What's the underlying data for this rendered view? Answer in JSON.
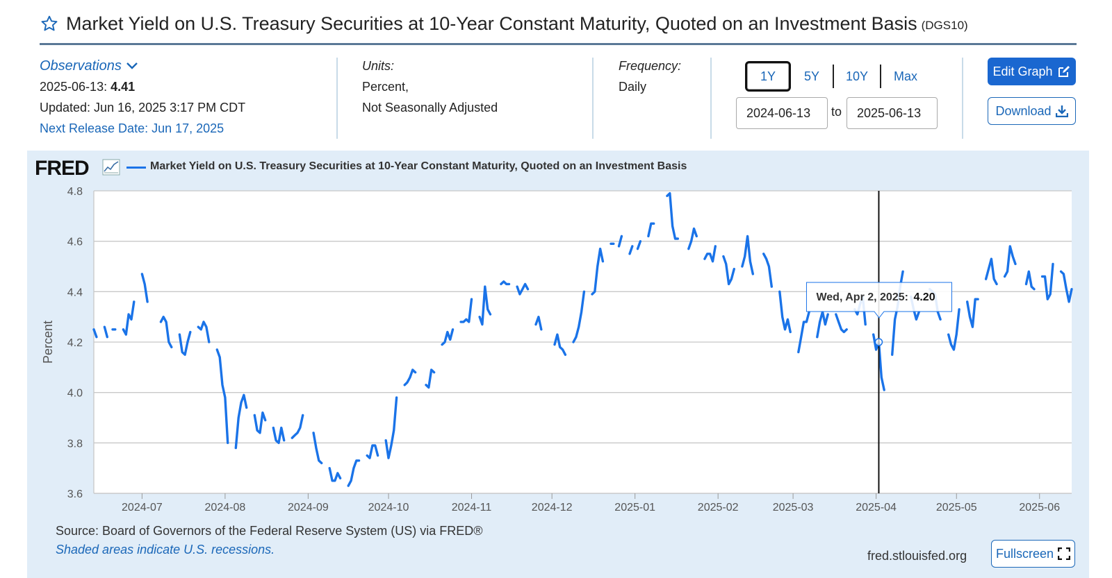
{
  "header": {
    "title": "Market Yield on U.S. Treasury Securities at 10-Year Constant Maturity, Quoted on an Investment Basis",
    "series_id": "(DGS10)",
    "favorite_icon": "star-icon"
  },
  "meta": {
    "observations_label": "Observations",
    "obs_date": "2025-06-13:",
    "obs_value": "4.41",
    "updated": "Updated: Jun 16, 2025 3:17 PM CDT",
    "next_release": "Next Release Date: Jun 17, 2025",
    "units_label": "Units:",
    "units_line1": "Percent,",
    "units_line2": "Not Seasonally Adjusted",
    "frequency_label": "Frequency:",
    "frequency_value": "Daily"
  },
  "controls": {
    "ranges": [
      "1Y",
      "5Y",
      "10Y",
      "Max"
    ],
    "active_range": "1Y",
    "start_date": "2024-06-13",
    "to_label": "to",
    "end_date": "2025-06-13",
    "edit_graph": "Edit Graph",
    "download": "Download",
    "fullscreen": "Fullscreen"
  },
  "graph": {
    "logo": "FRED",
    "legend": "Market Yield on U.S. Treasury Securities at 10-Year Constant Maturity, Quoted on an Investment Basis",
    "source": "Source: Board of Governors of the Federal Reserve System (US) via FRED®",
    "recessions_note": "Shaded areas indicate U.S. recessions.",
    "url": "fred.stlouisfed.org",
    "tooltip_date": "Wed, Apr 2, 2025:",
    "tooltip_value": "4.20"
  },
  "colors": {
    "series": "#1a73e8",
    "link": "#1a67b8",
    "panel": "#e1edf8",
    "button": "#1a67d0"
  },
  "chart_data": {
    "type": "line",
    "ylabel": "Percent",
    "ylim": [
      3.6,
      4.8
    ],
    "yticks": [
      3.6,
      3.8,
      4.0,
      4.2,
      4.4,
      4.6,
      4.8
    ],
    "xlim": [
      "2024-06-13",
      "2025-06-13"
    ],
    "xticks": [
      "2024-07",
      "2024-08",
      "2024-09",
      "2024-10",
      "2024-11",
      "2024-12",
      "2025-01",
      "2025-02",
      "2025-03",
      "2025-04",
      "2025-05",
      "2025-06"
    ],
    "grid": true,
    "legend": "top-left",
    "series": [
      {
        "name": "Market Yield on U.S. Treasury Securities at 10-Year Constant Maturity, Quoted on an Investment Basis",
        "points": [
          [
            "2024-06-13",
            4.25
          ],
          [
            "2024-06-14",
            4.22
          ],
          [
            "2024-06-17",
            4.26
          ],
          [
            "2024-06-18",
            4.22
          ],
          [
            "2024-06-20",
            4.25
          ],
          [
            "2024-06-21",
            4.25
          ],
          [
            "2024-06-24",
            4.25
          ],
          [
            "2024-06-25",
            4.23
          ],
          [
            "2024-06-26",
            4.31
          ],
          [
            "2024-06-27",
            4.29
          ],
          [
            "2024-06-28",
            4.36
          ],
          [
            "2024-07-01",
            4.47
          ],
          [
            "2024-07-02",
            4.43
          ],
          [
            "2024-07-03",
            4.36
          ],
          [
            "2024-07-05",
            4.28
          ],
          [
            "2024-07-08",
            4.28
          ],
          [
            "2024-07-09",
            4.3
          ],
          [
            "2024-07-10",
            4.28
          ],
          [
            "2024-07-11",
            4.2
          ],
          [
            "2024-07-12",
            4.18
          ],
          [
            "2024-07-15",
            4.23
          ],
          [
            "2024-07-16",
            4.16
          ],
          [
            "2024-07-17",
            4.15
          ],
          [
            "2024-07-18",
            4.2
          ],
          [
            "2024-07-19",
            4.24
          ],
          [
            "2024-07-22",
            4.26
          ],
          [
            "2024-07-23",
            4.25
          ],
          [
            "2024-07-24",
            4.28
          ],
          [
            "2024-07-25",
            4.26
          ],
          [
            "2024-07-26",
            4.2
          ],
          [
            "2024-07-29",
            4.17
          ],
          [
            "2024-07-30",
            4.14
          ],
          [
            "2024-07-31",
            4.03
          ],
          [
            "2024-08-01",
            3.98
          ],
          [
            "2024-08-02",
            3.8
          ],
          [
            "2024-08-05",
            3.78
          ],
          [
            "2024-08-06",
            3.9
          ],
          [
            "2024-08-07",
            3.96
          ],
          [
            "2024-08-08",
            3.99
          ],
          [
            "2024-08-09",
            3.94
          ],
          [
            "2024-08-12",
            3.91
          ],
          [
            "2024-08-13",
            3.85
          ],
          [
            "2024-08-14",
            3.84
          ],
          [
            "2024-08-15",
            3.92
          ],
          [
            "2024-08-16",
            3.89
          ],
          [
            "2024-08-19",
            3.86
          ],
          [
            "2024-08-20",
            3.81
          ],
          [
            "2024-08-21",
            3.8
          ],
          [
            "2024-08-22",
            3.86
          ],
          [
            "2024-08-23",
            3.81
          ],
          [
            "2024-08-26",
            3.82
          ],
          [
            "2024-08-27",
            3.83
          ],
          [
            "2024-08-28",
            3.84
          ],
          [
            "2024-08-29",
            3.86
          ],
          [
            "2024-08-30",
            3.91
          ],
          [
            "2024-09-03",
            3.84
          ],
          [
            "2024-09-04",
            3.78
          ],
          [
            "2024-09-05",
            3.73
          ],
          [
            "2024-09-06",
            3.72
          ],
          [
            "2024-09-09",
            3.7
          ],
          [
            "2024-09-10",
            3.65
          ],
          [
            "2024-09-11",
            3.65
          ],
          [
            "2024-09-12",
            3.68
          ],
          [
            "2024-09-13",
            3.66
          ],
          [
            "2024-09-16",
            3.63
          ],
          [
            "2024-09-17",
            3.65
          ],
          [
            "2024-09-18",
            3.7
          ],
          [
            "2024-09-19",
            3.73
          ],
          [
            "2024-09-20",
            3.73
          ],
          [
            "2024-09-23",
            3.75
          ],
          [
            "2024-09-24",
            3.74
          ],
          [
            "2024-09-25",
            3.79
          ],
          [
            "2024-09-26",
            3.79
          ],
          [
            "2024-09-27",
            3.75
          ],
          [
            "2024-09-30",
            3.81
          ],
          [
            "2024-10-01",
            3.74
          ],
          [
            "2024-10-02",
            3.79
          ],
          [
            "2024-10-03",
            3.85
          ],
          [
            "2024-10-04",
            3.98
          ],
          [
            "2024-10-07",
            4.03
          ],
          [
            "2024-10-08",
            4.04
          ],
          [
            "2024-10-09",
            4.06
          ],
          [
            "2024-10-10",
            4.09
          ],
          [
            "2024-10-11",
            4.08
          ],
          [
            "2024-10-15",
            4.03
          ],
          [
            "2024-10-16",
            4.02
          ],
          [
            "2024-10-17",
            4.09
          ],
          [
            "2024-10-18",
            4.08
          ],
          [
            "2024-10-21",
            4.19
          ],
          [
            "2024-10-22",
            4.2
          ],
          [
            "2024-10-23",
            4.24
          ],
          [
            "2024-10-24",
            4.21
          ],
          [
            "2024-10-25",
            4.25
          ],
          [
            "2024-10-28",
            4.28
          ],
          [
            "2024-10-29",
            4.28
          ],
          [
            "2024-10-30",
            4.29
          ],
          [
            "2024-10-31",
            4.28
          ],
          [
            "2024-11-01",
            4.37
          ],
          [
            "2024-11-04",
            4.3
          ],
          [
            "2024-11-05",
            4.27
          ],
          [
            "2024-11-06",
            4.42
          ],
          [
            "2024-11-07",
            4.33
          ],
          [
            "2024-11-08",
            4.31
          ],
          [
            "2024-11-12",
            4.43
          ],
          [
            "2024-11-13",
            4.44
          ],
          [
            "2024-11-14",
            4.43
          ],
          [
            "2024-11-15",
            4.43
          ],
          [
            "2024-11-18",
            4.42
          ],
          [
            "2024-11-19",
            4.39
          ],
          [
            "2024-11-20",
            4.41
          ],
          [
            "2024-11-21",
            4.43
          ],
          [
            "2024-11-22",
            4.41
          ],
          [
            "2024-11-25",
            4.27
          ],
          [
            "2024-11-26",
            4.3
          ],
          [
            "2024-11-27",
            4.25
          ],
          [
            "2024-11-29",
            4.18
          ],
          [
            "2024-12-02",
            4.19
          ],
          [
            "2024-12-03",
            4.23
          ],
          [
            "2024-12-04",
            4.18
          ],
          [
            "2024-12-05",
            4.17
          ],
          [
            "2024-12-06",
            4.15
          ],
          [
            "2024-12-09",
            4.2
          ],
          [
            "2024-12-10",
            4.22
          ],
          [
            "2024-12-11",
            4.26
          ],
          [
            "2024-12-12",
            4.32
          ],
          [
            "2024-12-13",
            4.4
          ],
          [
            "2024-12-16",
            4.39
          ],
          [
            "2024-12-17",
            4.4
          ],
          [
            "2024-12-18",
            4.5
          ],
          [
            "2024-12-19",
            4.57
          ],
          [
            "2024-12-20",
            4.52
          ],
          [
            "2024-12-23",
            4.59
          ],
          [
            "2024-12-24",
            4.59
          ],
          [
            "2024-12-26",
            4.58
          ],
          [
            "2024-12-27",
            4.62
          ],
          [
            "2024-12-30",
            4.55
          ],
          [
            "2024-12-31",
            4.58
          ],
          [
            "2025-01-02",
            4.57
          ],
          [
            "2025-01-03",
            4.6
          ],
          [
            "2025-01-06",
            4.62
          ],
          [
            "2025-01-07",
            4.67
          ],
          [
            "2025-01-08",
            4.67
          ],
          [
            "2025-01-10",
            4.77
          ],
          [
            "2025-01-13",
            4.78
          ],
          [
            "2025-01-14",
            4.79
          ],
          [
            "2025-01-15",
            4.66
          ],
          [
            "2025-01-16",
            4.61
          ],
          [
            "2025-01-17",
            4.61
          ],
          [
            "2025-01-21",
            4.57
          ],
          [
            "2025-01-22",
            4.6
          ],
          [
            "2025-01-23",
            4.65
          ],
          [
            "2025-01-24",
            4.62
          ],
          [
            "2025-01-27",
            4.53
          ],
          [
            "2025-01-28",
            4.55
          ],
          [
            "2025-01-29",
            4.55
          ],
          [
            "2025-01-30",
            4.52
          ],
          [
            "2025-01-31",
            4.58
          ],
          [
            "2025-02-03",
            4.54
          ],
          [
            "2025-02-04",
            4.51
          ],
          [
            "2025-02-05",
            4.43
          ],
          [
            "2025-02-06",
            4.45
          ],
          [
            "2025-02-07",
            4.49
          ],
          [
            "2025-02-10",
            4.5
          ],
          [
            "2025-02-11",
            4.54
          ],
          [
            "2025-02-12",
            4.62
          ],
          [
            "2025-02-13",
            4.52
          ],
          [
            "2025-02-14",
            4.47
          ],
          [
            "2025-02-18",
            4.55
          ],
          [
            "2025-02-19",
            4.53
          ],
          [
            "2025-02-20",
            4.5
          ],
          [
            "2025-02-21",
            4.42
          ],
          [
            "2025-02-24",
            4.4
          ],
          [
            "2025-02-25",
            4.3
          ],
          [
            "2025-02-26",
            4.25
          ],
          [
            "2025-02-27",
            4.29
          ],
          [
            "2025-02-28",
            4.24
          ],
          [
            "2025-03-03",
            4.16
          ],
          [
            "2025-03-04",
            4.22
          ],
          [
            "2025-03-05",
            4.28
          ],
          [
            "2025-03-06",
            4.28
          ],
          [
            "2025-03-07",
            4.32
          ],
          [
            "2025-03-10",
            4.22
          ],
          [
            "2025-03-11",
            4.28
          ],
          [
            "2025-03-12",
            4.32
          ],
          [
            "2025-03-13",
            4.27
          ],
          [
            "2025-03-14",
            4.31
          ],
          [
            "2025-03-17",
            4.31
          ],
          [
            "2025-03-18",
            4.28
          ],
          [
            "2025-03-19",
            4.25
          ],
          [
            "2025-03-20",
            4.24
          ],
          [
            "2025-03-21",
            4.25
          ],
          [
            "2025-03-24",
            4.33
          ],
          [
            "2025-03-25",
            4.31
          ],
          [
            "2025-03-26",
            4.35
          ],
          [
            "2025-03-27",
            4.38
          ],
          [
            "2025-03-28",
            4.27
          ],
          [
            "2025-03-31",
            4.23
          ],
          [
            "2025-04-01",
            4.17
          ],
          [
            "2025-04-02",
            4.2
          ],
          [
            "2025-04-03",
            4.06
          ],
          [
            "2025-04-04",
            4.01
          ],
          [
            "2025-04-07",
            4.15
          ],
          [
            "2025-04-08",
            4.29
          ],
          [
            "2025-04-09",
            4.34
          ],
          [
            "2025-04-10",
            4.42
          ],
          [
            "2025-04-11",
            4.48
          ],
          [
            "2025-04-14",
            4.38
          ],
          [
            "2025-04-15",
            4.33
          ],
          [
            "2025-04-16",
            4.29
          ],
          [
            "2025-04-17",
            4.32
          ],
          [
            "2025-04-21",
            4.41
          ],
          [
            "2025-04-22",
            4.4
          ],
          [
            "2025-04-23",
            4.39
          ],
          [
            "2025-04-24",
            4.32
          ],
          [
            "2025-04-25",
            4.29
          ],
          [
            "2025-04-28",
            4.23
          ],
          [
            "2025-04-29",
            4.19
          ],
          [
            "2025-04-30",
            4.17
          ],
          [
            "2025-05-01",
            4.23
          ],
          [
            "2025-05-02",
            4.33
          ],
          [
            "2025-05-05",
            4.36
          ],
          [
            "2025-05-06",
            4.3
          ],
          [
            "2025-05-07",
            4.26
          ],
          [
            "2025-05-08",
            4.37
          ],
          [
            "2025-05-09",
            4.37
          ],
          [
            "2025-05-12",
            4.45
          ],
          [
            "2025-05-13",
            4.49
          ],
          [
            "2025-05-14",
            4.53
          ],
          [
            "2025-05-15",
            4.45
          ],
          [
            "2025-05-16",
            4.43
          ],
          [
            "2025-05-19",
            4.46
          ],
          [
            "2025-05-20",
            4.48
          ],
          [
            "2025-05-21",
            4.58
          ],
          [
            "2025-05-22",
            4.54
          ],
          [
            "2025-05-23",
            4.51
          ],
          [
            "2025-05-27",
            4.43
          ],
          [
            "2025-05-28",
            4.48
          ],
          [
            "2025-05-29",
            4.42
          ],
          [
            "2025-05-30",
            4.41
          ],
          [
            "2025-06-02",
            4.46
          ],
          [
            "2025-06-03",
            4.46
          ],
          [
            "2025-06-04",
            4.37
          ],
          [
            "2025-06-05",
            4.39
          ],
          [
            "2025-06-06",
            4.51
          ],
          [
            "2025-06-09",
            4.48
          ],
          [
            "2025-06-10",
            4.47
          ],
          [
            "2025-06-11",
            4.41
          ],
          [
            "2025-06-12",
            4.36
          ],
          [
            "2025-06-13",
            4.41
          ]
        ]
      }
    ],
    "hover": {
      "date": "2025-04-02",
      "value": 4.2
    }
  }
}
